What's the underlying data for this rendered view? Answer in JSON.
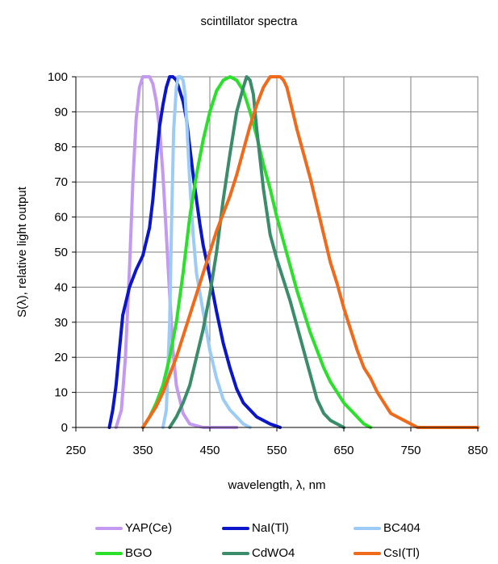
{
  "chart_data": {
    "type": "line",
    "title": "scintillator spectra",
    "xlabel": "wavelength, λ, nm",
    "ylabel": "S(λ), relative light output",
    "xlim": [
      250,
      850
    ],
    "ylim": [
      0,
      100
    ],
    "xticks": [
      250,
      350,
      450,
      550,
      650,
      750,
      850
    ],
    "yticks": [
      0,
      10,
      20,
      30,
      40,
      50,
      60,
      70,
      80,
      90,
      100
    ],
    "grid": true,
    "legend_position": "bottom",
    "series": [
      {
        "name": "YAP(Ce)",
        "color": "#c39af0",
        "x": [
          310,
          318,
          324,
          330,
          335,
          340,
          345,
          350,
          355,
          360,
          365,
          370,
          375,
          380,
          385,
          390,
          395,
          400,
          410,
          420,
          440,
          470,
          490
        ],
        "y": [
          0,
          5,
          20,
          45,
          70,
          88,
          97,
          100,
          100,
          100,
          98,
          93,
          85,
          72,
          55,
          38,
          22,
          12,
          4,
          1,
          0,
          0,
          0
        ]
      },
      {
        "name": "NaI(Tl)",
        "color": "#0a16c8",
        "x": [
          300,
          305,
          310,
          315,
          320,
          330,
          340,
          350,
          360,
          365,
          370,
          375,
          380,
          385,
          390,
          395,
          400,
          405,
          410,
          415,
          420,
          425,
          430,
          435,
          440,
          450,
          460,
          470,
          480,
          490,
          500,
          520,
          540,
          555
        ],
        "y": [
          0,
          5,
          12,
          22,
          32,
          40,
          45,
          49,
          57,
          65,
          76,
          86,
          92,
          97,
          100,
          100,
          99,
          96,
          93,
          88,
          80,
          72,
          65,
          58,
          52,
          43,
          33,
          24,
          17,
          11,
          7,
          3,
          1,
          0
        ]
      },
      {
        "name": "BC404",
        "color": "#9ccbf5",
        "x": [
          380,
          385,
          390,
          393,
          396,
          400,
          403,
          406,
          410,
          413,
          416,
          420,
          425,
          430,
          440,
          450,
          460,
          470,
          480,
          490,
          500,
          510
        ],
        "y": [
          0,
          5,
          30,
          60,
          85,
          97,
          100,
          100,
          99,
          95,
          85,
          70,
          55,
          44,
          33,
          22,
          14,
          8,
          5,
          3,
          1,
          0
        ]
      },
      {
        "name": "BGO",
        "color": "#2be02b",
        "x": [
          350,
          360,
          370,
          380,
          390,
          400,
          410,
          420,
          430,
          440,
          450,
          460,
          470,
          480,
          490,
          500,
          510,
          520,
          530,
          540,
          550,
          560,
          570,
          580,
          590,
          600,
          610,
          620,
          630,
          640,
          650,
          660,
          670,
          680,
          690
        ],
        "y": [
          0,
          3,
          7,
          12,
          20,
          30,
          44,
          60,
          72,
          82,
          90,
          96,
          99,
          100,
          99,
          96,
          90,
          83,
          75,
          68,
          60,
          53,
          46,
          39,
          33,
          27,
          22,
          17,
          13,
          10,
          7,
          5,
          3,
          1,
          0
        ]
      },
      {
        "name": "CdWO4",
        "color": "#3a8c6a",
        "x": [
          390,
          400,
          410,
          420,
          430,
          440,
          450,
          460,
          470,
          480,
          490,
          500,
          505,
          510,
          515,
          520,
          530,
          540,
          550,
          560,
          570,
          580,
          590,
          600,
          610,
          620,
          630,
          640,
          650
        ],
        "y": [
          0,
          3,
          7,
          12,
          20,
          28,
          38,
          50,
          65,
          78,
          90,
          97,
          100,
          99,
          95,
          85,
          68,
          55,
          48,
          42,
          36,
          29,
          22,
          15,
          8,
          4,
          2,
          1,
          0
        ]
      },
      {
        "name": "CsI(Tl)",
        "color": "#f06a1c",
        "x": [
          350,
          360,
          370,
          380,
          390,
          400,
          410,
          420,
          430,
          440,
          450,
          460,
          470,
          480,
          490,
          500,
          510,
          520,
          530,
          540,
          545,
          550,
          555,
          560,
          565,
          570,
          580,
          590,
          600,
          610,
          620,
          630,
          640,
          650,
          660,
          670,
          680,
          690,
          700,
          710,
          720,
          730,
          740,
          750,
          760,
          770,
          780,
          800,
          820,
          850
        ],
        "y": [
          0,
          3,
          6,
          10,
          15,
          20,
          26,
          32,
          38,
          44,
          50,
          56,
          61,
          66,
          72,
          79,
          86,
          92,
          97,
          100,
          100,
          100,
          100,
          99,
          97,
          93,
          85,
          78,
          71,
          63,
          55,
          47,
          41,
          34,
          28,
          22,
          17,
          14,
          10,
          7,
          4,
          3,
          2,
          1,
          0,
          0,
          0,
          0,
          0,
          0
        ]
      }
    ]
  }
}
